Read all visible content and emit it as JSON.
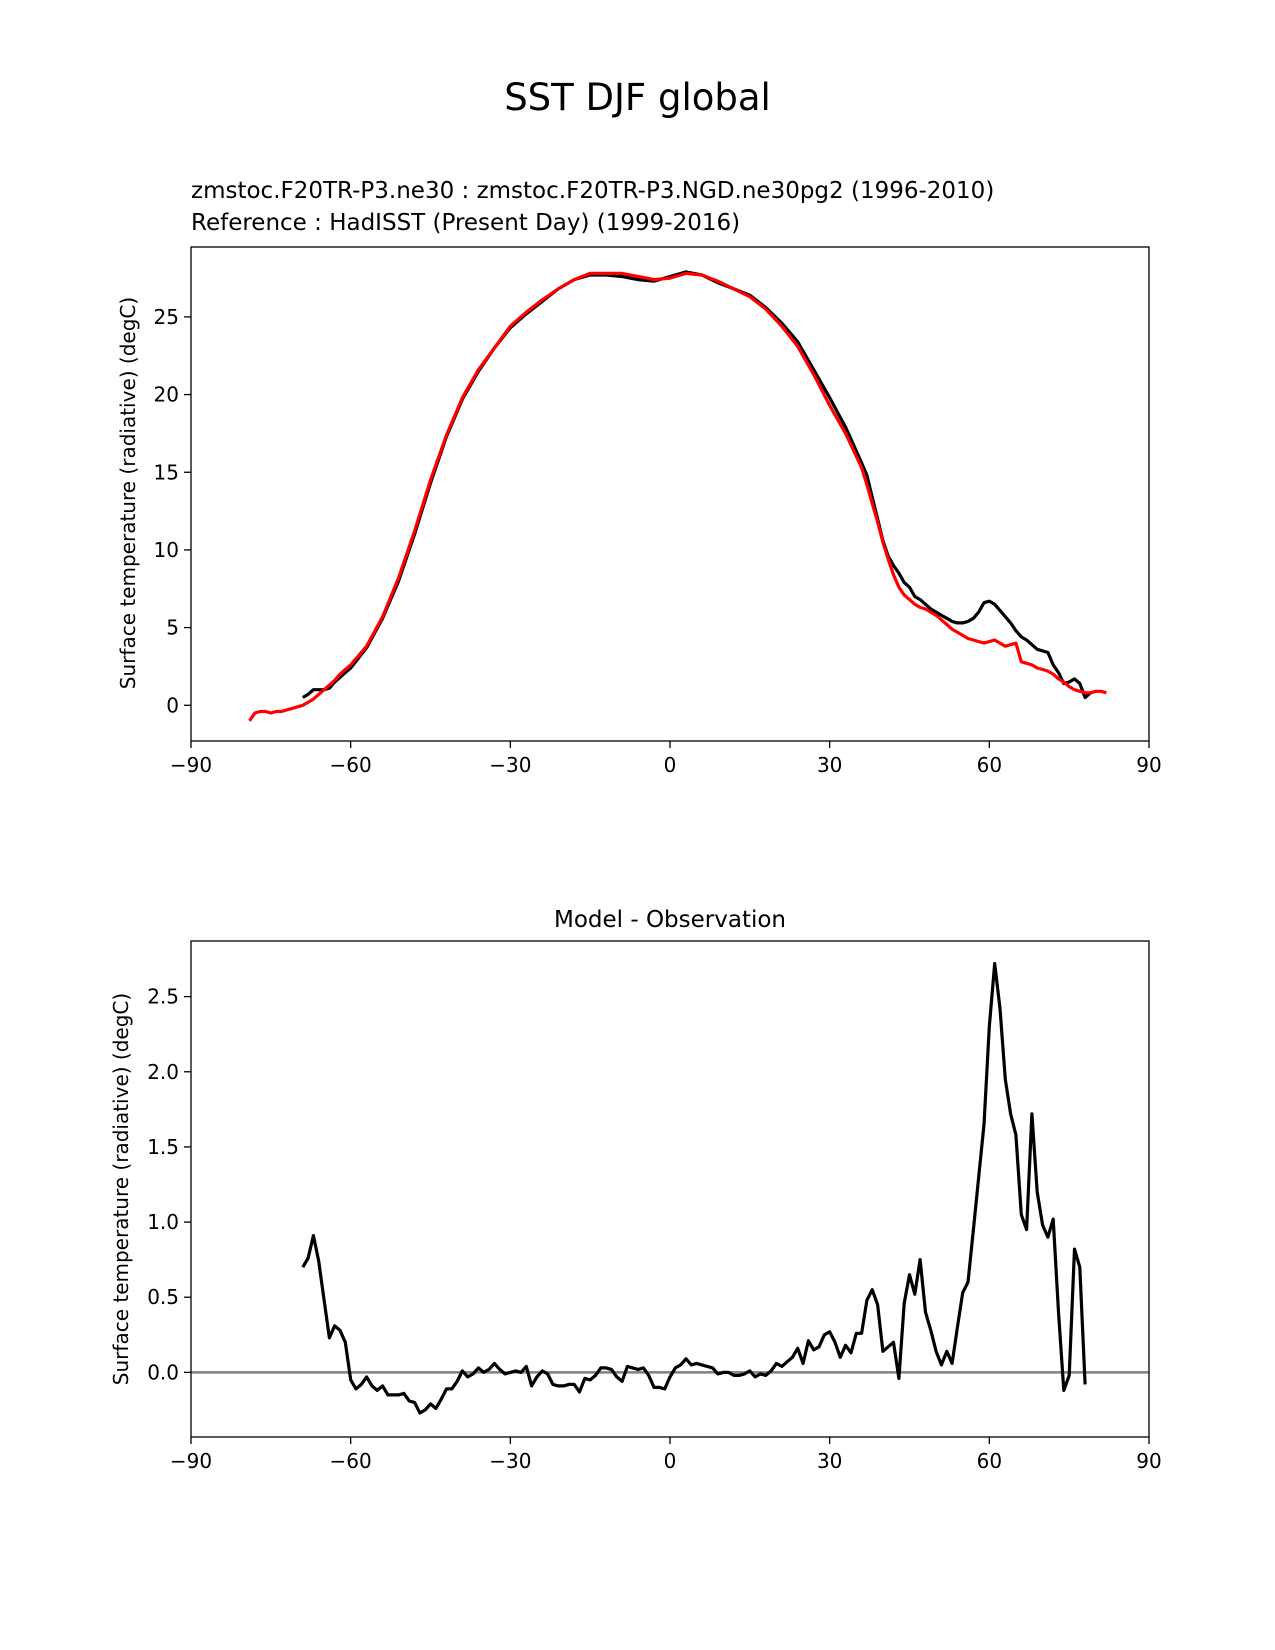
{
  "figure": {
    "suptitle": "SST DJF global"
  },
  "chart_data": [
    {
      "type": "line",
      "title_line1": "zmstoc.F20TR-P3.ne30 : zmstoc.F20TR-P3.NGD.ne30pg2 (1996-2010)",
      "title_line2": "Reference : HadISST (Present Day) (1999-2016)",
      "title_line2_color": "#ff0000",
      "xlabel": "",
      "ylabel": "Surface temperature (radiative) (degC)",
      "xlim": [
        -90,
        90
      ],
      "ylim": [
        -2.3,
        29.5
      ],
      "xticks": [
        -90,
        -60,
        -30,
        0,
        30,
        60,
        90
      ],
      "xtick_labels": [
        "−90",
        "−60",
        "−30",
        "0",
        "30",
        "60",
        "90"
      ],
      "yticks": [
        0,
        5,
        10,
        15,
        20,
        25
      ],
      "ytick_labels": [
        "0",
        "5",
        "10",
        "15",
        "20",
        "25"
      ],
      "series": [
        {
          "color": "#000000",
          "x": [
            -69,
            -68,
            -67,
            -66,
            -65,
            -64,
            -63,
            -62,
            -61,
            -60,
            -57,
            -54,
            -51,
            -48,
            -45,
            -42,
            -39,
            -36,
            -33,
            -30,
            -27,
            -24,
            -21,
            -18,
            -15,
            -12,
            -9,
            -6,
            -3,
            0,
            3,
            6,
            9,
            12,
            15,
            18,
            21,
            24,
            27,
            30,
            33,
            36,
            37,
            38,
            39,
            40,
            41,
            42,
            43,
            44,
            45,
            46,
            47,
            48,
            49,
            50,
            51,
            52,
            53,
            54,
            55,
            56,
            57,
            58,
            59,
            60,
            61,
            62,
            63,
            64,
            65,
            66,
            67,
            68,
            69,
            70,
            71,
            72,
            73,
            74,
            75,
            76,
            77,
            78,
            79
          ],
          "y": [
            0.5,
            0.7,
            1.0,
            1.0,
            1.0,
            1.1,
            1.5,
            1.8,
            2.1,
            2.4,
            3.7,
            5.6,
            8.0,
            11.0,
            14.3,
            17.3,
            19.7,
            21.5,
            23.0,
            24.3,
            25.2,
            26.0,
            26.8,
            27.4,
            27.7,
            27.7,
            27.6,
            27.4,
            27.3,
            27.6,
            27.9,
            27.7,
            27.2,
            26.8,
            26.4,
            25.6,
            24.6,
            23.4,
            21.6,
            19.8,
            17.9,
            15.6,
            14.8,
            13.4,
            12.0,
            10.6,
            9.6,
            9.0,
            8.5,
            7.9,
            7.6,
            7.0,
            6.8,
            6.5,
            6.2,
            6.0,
            5.8,
            5.6,
            5.4,
            5.3,
            5.3,
            5.4,
            5.6,
            6.0,
            6.6,
            6.7,
            6.5,
            6.1,
            5.7,
            5.3,
            4.8,
            4.4,
            4.2,
            3.9,
            3.6,
            3.5,
            3.4,
            2.6,
            2.1,
            1.4,
            1.5,
            1.7,
            1.4,
            0.5,
            0.8
          ]
        },
        {
          "color": "#ff0000",
          "x": [
            -79,
            -78,
            -77,
            -76,
            -75,
            -74,
            -73,
            -72,
            -71,
            -70,
            -69,
            -68,
            -67,
            -66,
            -65,
            -64,
            -63,
            -62,
            -61,
            -60,
            -57,
            -54,
            -51,
            -48,
            -45,
            -42,
            -39,
            -36,
            -33,
            -30,
            -27,
            -24,
            -21,
            -18,
            -15,
            -12,
            -9,
            -6,
            -3,
            0,
            3,
            6,
            9,
            12,
            15,
            18,
            21,
            24,
            27,
            30,
            33,
            36,
            37,
            38,
            39,
            40,
            41,
            42,
            43,
            44,
            45,
            46,
            47,
            48,
            49,
            50,
            51,
            52,
            53,
            54,
            55,
            56,
            57,
            58,
            59,
            60,
            61,
            62,
            63,
            64,
            65,
            66,
            67,
            68,
            69,
            70,
            71,
            72,
            73,
            74,
            75,
            76,
            77,
            78,
            79,
            80,
            81,
            82
          ],
          "y": [
            -1.0,
            -0.5,
            -0.4,
            -0.4,
            -0.5,
            -0.4,
            -0.4,
            -0.3,
            -0.2,
            -0.1,
            0.0,
            0.2,
            0.4,
            0.7,
            1.0,
            1.3,
            1.6,
            2.0,
            2.3,
            2.6,
            3.8,
            5.7,
            8.2,
            11.2,
            14.5,
            17.4,
            19.8,
            21.6,
            23.0,
            24.4,
            25.3,
            26.1,
            26.8,
            27.4,
            27.8,
            27.8,
            27.8,
            27.6,
            27.4,
            27.5,
            27.8,
            27.7,
            27.3,
            26.8,
            26.3,
            25.5,
            24.4,
            23.1,
            21.3,
            19.3,
            17.5,
            15.3,
            14.2,
            13.0,
            11.8,
            10.5,
            9.4,
            8.4,
            7.6,
            7.1,
            6.8,
            6.5,
            6.3,
            6.2,
            6.0,
            5.8,
            5.5,
            5.2,
            4.9,
            4.7,
            4.5,
            4.3,
            4.2,
            4.1,
            4.0,
            4.1,
            4.2,
            4.0,
            3.8,
            3.9,
            4.0,
            2.8,
            2.7,
            2.6,
            2.4,
            2.3,
            2.2,
            2.0,
            1.7,
            1.5,
            1.2,
            1.0,
            0.9,
            0.8,
            0.8,
            0.9,
            0.9,
            0.8
          ]
        }
      ]
    },
    {
      "type": "line",
      "title": "Model - Observation",
      "xlabel": "",
      "ylabel": "Surface temperature (radiative) (degC)",
      "xlim": [
        -90,
        90
      ],
      "ylim": [
        -0.43,
        2.87
      ],
      "xticks": [
        -90,
        -60,
        -30,
        0,
        30,
        60,
        90
      ],
      "xtick_labels": [
        "−90",
        "−60",
        "−30",
        "0",
        "30",
        "60",
        "90"
      ],
      "yticks": [
        0.0,
        0.5,
        1.0,
        1.5,
        2.0,
        2.5
      ],
      "ytick_labels": [
        "0.0",
        "0.5",
        "1.0",
        "1.5",
        "2.0",
        "2.5"
      ],
      "zero_line_color": "#808080",
      "series": [
        {
          "color": "#000000",
          "x": [
            -69,
            -68,
            -67,
            -66,
            -65,
            -64,
            -63,
            -62,
            -61,
            -60,
            -59,
            -58,
            -57,
            -56,
            -55,
            -54,
            -53,
            -52,
            -51,
            -50,
            -49,
            -48,
            -47,
            -46,
            -45,
            -44,
            -43,
            -42,
            -41,
            -40,
            -39,
            -38,
            -37,
            -36,
            -35,
            -34,
            -33,
            -32,
            -31,
            -30,
            -29,
            -28,
            -27,
            -26,
            -25,
            -24,
            -23,
            -22,
            -21,
            -20,
            -19,
            -18,
            -17,
            -16,
            -15,
            -14,
            -13,
            -12,
            -11,
            -10,
            -9,
            -8,
            -7,
            -6,
            -5,
            -4,
            -3,
            -2,
            -1,
            0,
            1,
            2,
            3,
            4,
            5,
            6,
            7,
            8,
            9,
            10,
            11,
            12,
            13,
            14,
            15,
            16,
            17,
            18,
            19,
            20,
            21,
            22,
            23,
            24,
            25,
            26,
            27,
            28,
            29,
            30,
            31,
            32,
            33,
            34,
            35,
            36,
            37,
            38,
            39,
            40,
            41,
            42,
            43,
            44,
            45,
            46,
            47,
            48,
            49,
            50,
            51,
            52,
            53,
            54,
            55,
            56,
            57,
            58,
            59,
            60,
            61,
            62,
            63,
            64,
            65,
            66,
            67,
            68,
            69,
            70,
            71,
            72,
            73,
            74,
            75,
            76,
            77,
            78
          ],
          "y": [
            0.7,
            0.76,
            0.91,
            0.74,
            0.48,
            0.23,
            0.31,
            0.28,
            0.2,
            -0.05,
            -0.11,
            -0.08,
            -0.03,
            -0.09,
            -0.12,
            -0.09,
            -0.15,
            -0.15,
            -0.15,
            -0.14,
            -0.19,
            -0.2,
            -0.27,
            -0.25,
            -0.21,
            -0.24,
            -0.18,
            -0.11,
            -0.11,
            -0.06,
            0.01,
            -0.03,
            -0.01,
            0.03,
            0.0,
            0.02,
            0.06,
            0.02,
            -0.01,
            0.0,
            0.01,
            0.0,
            0.04,
            -0.09,
            -0.03,
            0.01,
            -0.01,
            -0.08,
            -0.09,
            -0.09,
            -0.08,
            -0.08,
            -0.13,
            -0.04,
            -0.05,
            -0.02,
            0.03,
            0.03,
            0.02,
            -0.03,
            -0.06,
            0.04,
            0.03,
            0.02,
            0.03,
            -0.02,
            -0.1,
            -0.1,
            -0.11,
            -0.03,
            0.03,
            0.05,
            0.09,
            0.05,
            0.06,
            0.05,
            0.04,
            0.03,
            -0.01,
            0.0,
            0.0,
            -0.02,
            -0.02,
            -0.01,
            0.01,
            -0.03,
            -0.01,
            -0.02,
            0.01,
            0.06,
            0.04,
            0.07,
            0.1,
            0.16,
            0.06,
            0.21,
            0.15,
            0.17,
            0.25,
            0.27,
            0.2,
            0.1,
            0.18,
            0.13,
            0.26,
            0.26,
            0.48,
            0.55,
            0.45,
            0.14,
            0.17,
            0.2,
            -0.04,
            0.46,
            0.65,
            0.52,
            0.75,
            0.4,
            0.28,
            0.14,
            0.05,
            0.14,
            0.06,
            0.3,
            0.53,
            0.6,
            0.95,
            1.3,
            1.65,
            2.3,
            2.72,
            2.42,
            1.95,
            1.72,
            1.58,
            1.05,
            0.95,
            1.72,
            1.2,
            0.98,
            0.9,
            1.02,
            0.4,
            -0.12,
            -0.02,
            0.82,
            0.7,
            -0.08
          ]
        }
      ]
    }
  ]
}
